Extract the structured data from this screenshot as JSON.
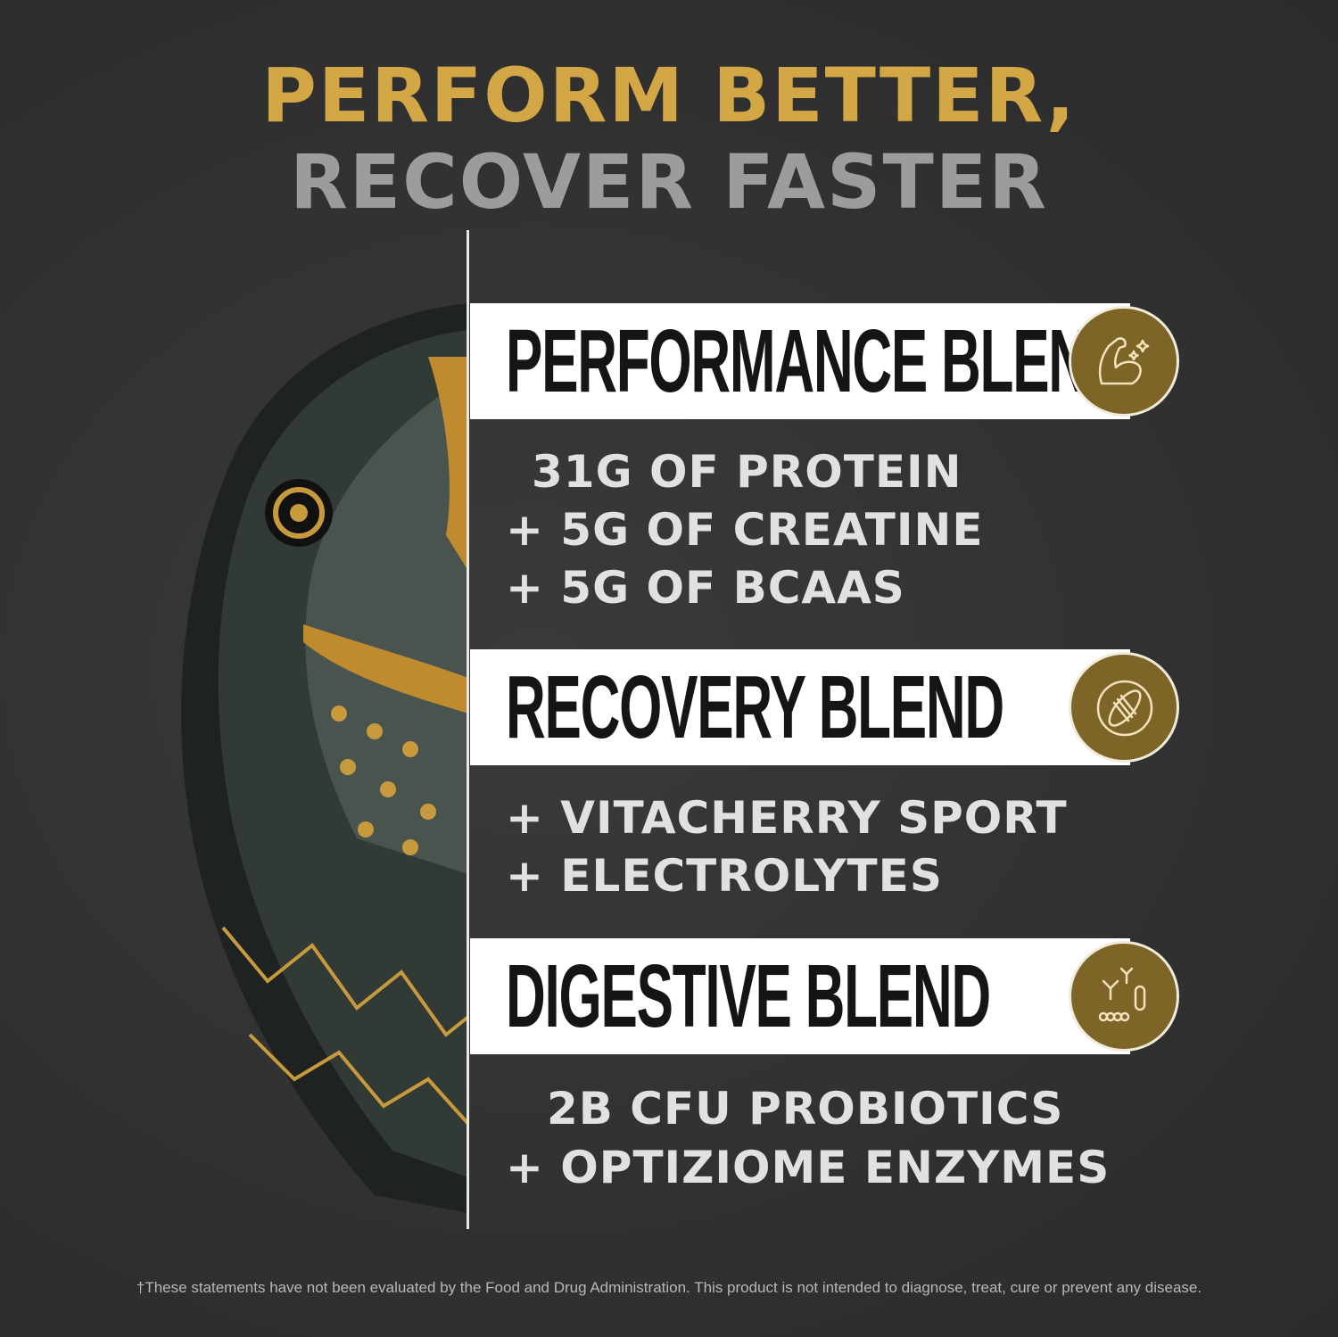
{
  "headline": {
    "line1": "PERFORM BETTER,",
    "line2": "RECOVER FASTER"
  },
  "colors": {
    "gold": "#d3a646",
    "gray": "#9c9c9c",
    "background": "#343434",
    "icon_bg": "#7d6427"
  },
  "blends": [
    {
      "title": "PERFORMANCE BLEND",
      "icon": "flexed-arm-icon",
      "lines": [
        "31G OF PROTEIN",
        "+ 5G OF CREATINE",
        "+ 5G OF BCAAS"
      ]
    },
    {
      "title": "RECOVERY BLEND",
      "icon": "muscle-recovery-icon",
      "lines": [
        "+ VITACHERRY SPORT",
        "+ ELECTROLYTES"
      ]
    },
    {
      "title": "DIGESTIVE BLEND",
      "icon": "probiotics-icon",
      "lines": [
        "2B CFU PROBIOTICS",
        "+ OPTIZIOME ENZYMES"
      ]
    }
  ],
  "disclaimer": "†These statements have not been evaluated by the Food and Drug Administration. This product is not intended to diagnose, treat, cure or prevent any disease."
}
